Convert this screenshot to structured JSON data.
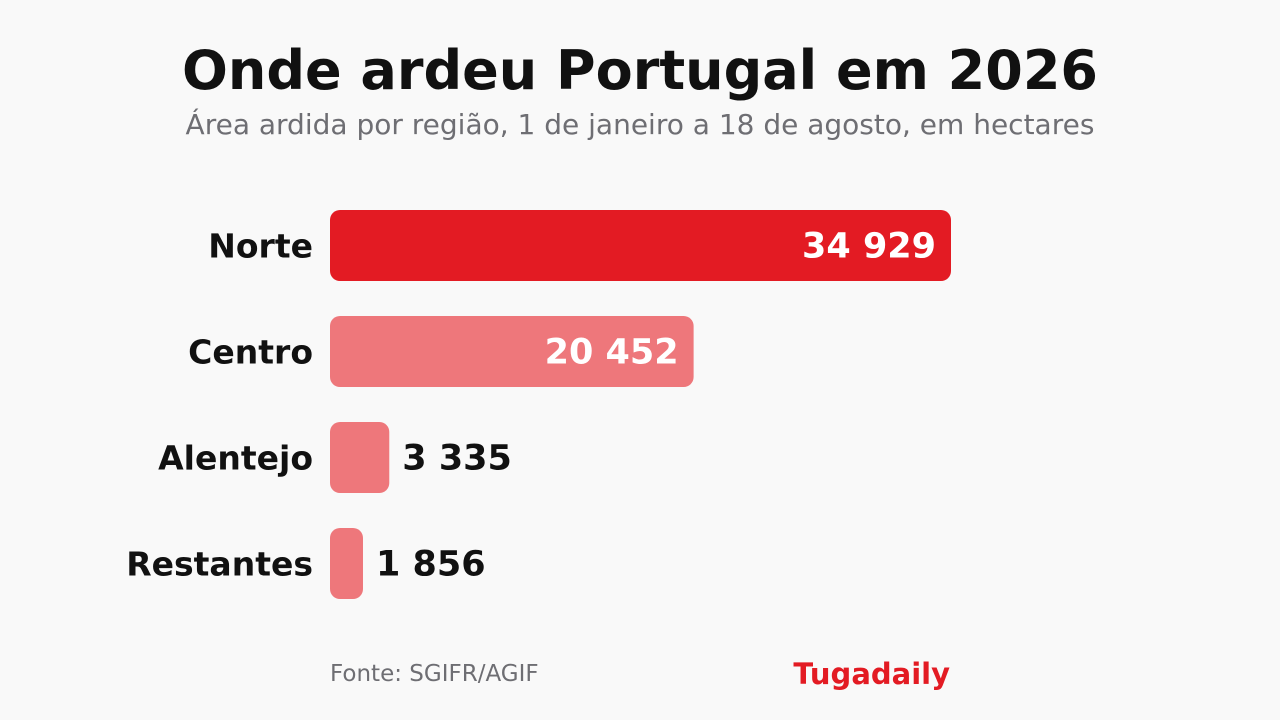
{
  "chart_data": {
    "type": "bar",
    "orientation": "horizontal",
    "title": "Onde ardeu Portugal em 2026",
    "subtitle": "Área ardida por região, 1 de janeiro a 18 de agosto, em hectares",
    "categories": [
      "Norte",
      "Centro",
      "Alentejo",
      "Restantes"
    ],
    "values": [
      34929,
      20452,
      3335,
      1856
    ],
    "value_labels": [
      "34 929",
      "20 452",
      "3 335",
      "1 856"
    ],
    "xlim": [
      0,
      34929
    ],
    "grid": false,
    "legend": false,
    "highlight_color": "#e31b23",
    "bar_color": "#ee777b",
    "inside_label_color": "#ffffff",
    "outside_label_color": "#111111"
  },
  "footer": {
    "source": "Fonte: SGIFR/AGIF",
    "brand": "Tugadaily",
    "brand_color": "#e31b23"
  }
}
